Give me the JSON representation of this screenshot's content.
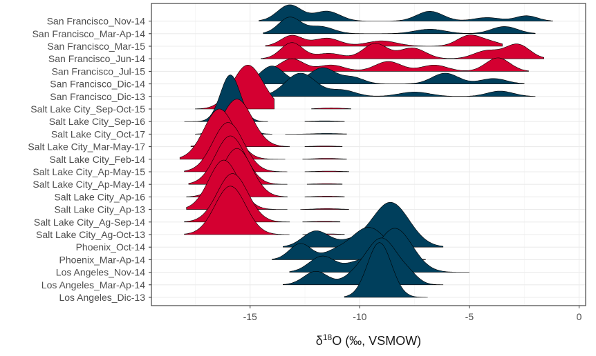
{
  "chart_data": {
    "type": "ridgeline",
    "xlabel_symbol": "δ",
    "xlabel_superscript": "18",
    "xlabel_rest": "O (‰, VSMOW)",
    "xlim": [
      -19.5,
      0.3
    ],
    "xticks": [
      -15,
      -10,
      -5,
      0
    ],
    "tick_labels": [
      "-15",
      "-10",
      "-5",
      "0"
    ],
    "grid": true,
    "colors": {
      "blue": "#003f5c",
      "red": "#d40031"
    },
    "categories": [
      "San Francisco_Nov-14",
      "San Francisco_Mar-Ap-14",
      "San Francisco_Mar-15",
      "San Francisco_Jun-14",
      "San Francisco_Jul-15",
      "San Francisco_Dic-14",
      "San Francisco_Dic-13",
      "Salt Lake City_Sep-Oct-15",
      "Salt Lake City_Sep-16",
      "Salt Lake City_Oct-17",
      "Salt Lake City_Mar-May-17",
      "Salt Lake City_Feb-14",
      "Salt Lake City_Ap-May-15",
      "Salt Lake City_Ap-May-14",
      "Salt Lake City_Ap-16",
      "Salt Lake City_Ap-13",
      "Salt Lake City_Ag-Sep-14",
      "Salt Lake City_Ag-Oct-13",
      "Phoenix_Oct-14",
      "Phoenix_Mar-Ap-14",
      "Los Angeles_Nov-14",
      "Los Angeles_Mar-Ap-14",
      "Los Angeles_Dic-13"
    ],
    "series": [
      {
        "category": "San Francisco_Nov-14",
        "color": "blue",
        "range": [
          -14.6,
          -1.2
        ],
        "peaks": [
          [
            -13.2,
            0.9,
            0.55
          ],
          [
            -11.5,
            0.55,
            0.6
          ],
          [
            -6.8,
            0.55,
            0.6
          ],
          [
            -4.2,
            0.2,
            0.6
          ],
          [
            -2.4,
            0.3,
            0.5
          ]
        ]
      },
      {
        "category": "San Francisco_Mar-Ap-14",
        "color": "blue",
        "range": [
          -14.4,
          -2.0
        ],
        "peaks": [
          [
            -13.2,
            0.9,
            0.5
          ],
          [
            -11.8,
            0.4,
            0.6
          ],
          [
            -6.8,
            0.25,
            0.7
          ],
          [
            -3.4,
            0.4,
            0.6
          ]
        ]
      },
      {
        "category": "San Francisco_Mar-15",
        "color": "red",
        "range": [
          -14.3,
          -3.5
        ],
        "peaks": [
          [
            -13.1,
            0.6,
            0.5
          ],
          [
            -11.5,
            0.45,
            0.6
          ],
          [
            -9.0,
            0.3,
            0.7
          ],
          [
            -5.0,
            0.6,
            0.55
          ],
          [
            -4.0,
            0.2,
            0.5
          ]
        ]
      },
      {
        "category": "San Francisco_Jun-14",
        "color": "red",
        "range": [
          -14.5,
          -1.6
        ],
        "peaks": [
          [
            -13.1,
            0.9,
            0.5
          ],
          [
            -11.4,
            0.3,
            0.6
          ],
          [
            -9.3,
            0.85,
            0.55
          ],
          [
            -7.6,
            0.6,
            0.6
          ],
          [
            -4.2,
            0.45,
            0.6
          ],
          [
            -2.8,
            0.8,
            0.55
          ]
        ]
      },
      {
        "category": "San Francisco_Jul-15",
        "color": "red",
        "range": [
          -14.2,
          -2.3
        ],
        "peaks": [
          [
            -13.1,
            0.7,
            0.55
          ],
          [
            -11.3,
            0.35,
            0.6
          ],
          [
            -8.7,
            0.55,
            0.6
          ],
          [
            -6.6,
            0.35,
            0.6
          ],
          [
            -3.7,
            0.75,
            0.55
          ]
        ]
      },
      {
        "category": "San Francisco_Dic-14",
        "color": "blue",
        "range": [
          -15.6,
          -2.5
        ],
        "peaks": [
          [
            -14.0,
            1.0,
            0.55
          ],
          [
            -11.7,
            0.9,
            0.6
          ],
          [
            -10.3,
            0.35,
            0.5
          ],
          [
            -6.1,
            0.6,
            0.6
          ],
          [
            -3.9,
            0.3,
            0.6
          ]
        ]
      },
      {
        "category": "San Francisco_Dic-13",
        "color": "blue",
        "range": [
          -14.3,
          -2.0
        ],
        "peaks": [
          [
            -12.7,
            1.3,
            0.7
          ],
          [
            -10.8,
            0.35,
            0.6
          ],
          [
            -7.5,
            0.25,
            0.7
          ],
          [
            -3.6,
            0.3,
            0.6
          ]
        ]
      },
      {
        "category": "Salt Lake City_Sep-Oct-15",
        "color": "red",
        "range": [
          -17.5,
          -13.9
        ],
        "peaks": [
          [
            -15.1,
            2.45,
            0.7
          ]
        ],
        "tail": [
          -12.2,
          -10.4,
          -11.3,
          0.06
        ]
      },
      {
        "category": "Salt Lake City_Sep-16",
        "color": "blue",
        "range": [
          -18.0,
          -14.2
        ],
        "peaks": [
          [
            -15.9,
            2.6,
            0.45
          ]
        ],
        "tail": [
          -12.5,
          -10.7,
          -11.6,
          0.04
        ]
      },
      {
        "category": "Salt Lake City_Oct-17",
        "color": "blue",
        "range": [
          -17.5,
          -14.0
        ],
        "peaks": [
          [
            -15.8,
            1.6,
            0.5
          ],
          [
            -15.3,
            0.6,
            0.3
          ]
        ],
        "tail": [
          -13.4,
          -10.6,
          -11.5,
          0.04
        ]
      },
      {
        "category": "Salt Lake City_Mar-May-17",
        "color": "red",
        "range": [
          -17.7,
          -13.2
        ],
        "peaks": [
          [
            -15.6,
            2.65,
            0.7
          ]
        ],
        "tail": [
          -12.5,
          -10.8,
          -11.6,
          0.04
        ]
      },
      {
        "category": "Salt Lake City_Feb-14",
        "color": "red",
        "range": [
          -18.2,
          -13.4
        ],
        "peaks": [
          [
            -16.4,
            2.8,
            0.7
          ]
        ],
        "tail": [
          -12.6,
          -10.6,
          -11.5,
          0.05
        ]
      },
      {
        "category": "Salt Lake City_Ap-May-15",
        "color": "red",
        "range": [
          -18.0,
          -13.3
        ],
        "peaks": [
          [
            -16.0,
            2.75,
            0.7
          ]
        ],
        "tail": [
          -12.5,
          -10.5,
          -11.4,
          0.04
        ]
      },
      {
        "category": "Salt Lake City_Ap-May-14",
        "color": "red",
        "range": [
          -17.8,
          -13.3
        ],
        "peaks": [
          [
            -15.9,
            2.7,
            0.68
          ]
        ],
        "tail": [
          -12.4,
          -10.8,
          -11.5,
          0.04
        ]
      },
      {
        "category": "Salt Lake City_Ap-16",
        "color": "red",
        "range": [
          -17.9,
          -13.3
        ],
        "peaks": [
          [
            -15.6,
            2.7,
            0.68
          ]
        ],
        "tail": [
          -12.5,
          -10.7,
          -11.5,
          0.04
        ]
      },
      {
        "category": "Salt Lake City_Ap-13",
        "color": "red",
        "range": [
          -17.9,
          -13.3
        ],
        "peaks": [
          [
            -16.2,
            2.75,
            0.68
          ]
        ],
        "tail": [
          -12.7,
          -10.5,
          -11.5,
          0.05
        ]
      },
      {
        "category": "Salt Lake City_Ag-Sep-14",
        "color": "red",
        "range": [
          -18.0,
          -13.2
        ],
        "peaks": [
          [
            -15.8,
            2.7,
            0.7
          ]
        ],
        "tail": [
          -12.6,
          -10.9,
          -11.6,
          0.04
        ]
      },
      {
        "category": "Salt Lake City_Ag-Oct-13",
        "color": "red",
        "range": [
          -18.0,
          -13.2
        ],
        "peaks": [
          [
            -15.9,
            2.7,
            0.7
          ]
        ],
        "tail": [
          -12.6,
          -10.7,
          -11.5,
          0.04
        ]
      },
      {
        "category": "Phoenix_Oct-14",
        "color": "blue",
        "range": [
          -13.5,
          -6.2
        ],
        "peaks": [
          [
            -12.0,
            0.9,
            0.6
          ],
          [
            -8.6,
            2.5,
            0.85
          ],
          [
            -10.5,
            0.25,
            0.6
          ]
        ]
      },
      {
        "category": "Phoenix_Mar-Ap-14",
        "color": "blue",
        "range": [
          -14.0,
          -7.0
        ],
        "peaks": [
          [
            -12.7,
            0.9,
            0.5
          ],
          [
            -11.2,
            0.3,
            0.5
          ],
          [
            -9.6,
            1.8,
            0.85
          ]
        ]
      },
      {
        "category": "Los Angeles_Nov-14",
        "color": "blue",
        "range": [
          -13.2,
          -5.0
        ],
        "peaks": [
          [
            -11.7,
            0.9,
            0.6
          ],
          [
            -8.4,
            2.45,
            0.8
          ],
          [
            -10.2,
            0.4,
            0.5
          ]
        ]
      },
      {
        "category": "Los Angeles_Mar-Ap-14",
        "color": "blue",
        "range": [
          -13.5,
          -6.2
        ],
        "peaks": [
          [
            -12.0,
            0.75,
            0.55
          ],
          [
            -10.3,
            0.3,
            0.5
          ],
          [
            -9.0,
            2.6,
            0.75
          ],
          [
            -7.7,
            0.3,
            0.4
          ]
        ]
      },
      {
        "category": "Los Angeles_Dic-13",
        "color": "blue",
        "range": [
          -10.7,
          -6.9
        ],
        "peaks": [
          [
            -9.1,
            3.05,
            0.55
          ]
        ]
      }
    ]
  }
}
